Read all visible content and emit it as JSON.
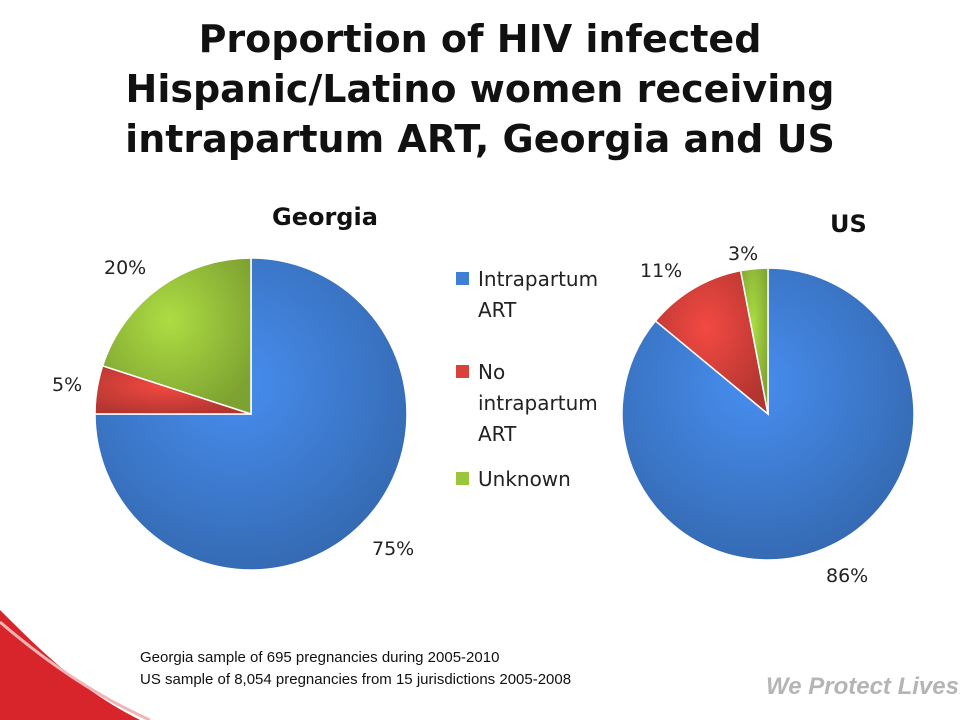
{
  "title_lines": [
    "Proportion of HIV infected",
    "Hispanic/Latino women receiving",
    "intrapartum ART, Georgia and US"
  ],
  "colors": {
    "Intrapartum ART": "#3f7fd6",
    "No intrapartum ART": "#d9413b",
    "Unknown": "#9ac53c",
    "footer_red": "#d7252b"
  },
  "legend": [
    "Intrapartum ART",
    "No intrapartum ART",
    "Unknown"
  ],
  "chart_data": [
    {
      "type": "pie",
      "title": "Georgia",
      "categories": [
        "Intrapartum ART",
        "No intrapartum ART",
        "Unknown"
      ],
      "values": [
        75,
        5,
        20
      ],
      "labels": [
        "75%",
        "5%",
        "20%"
      ],
      "legend_position": "right"
    },
    {
      "type": "pie",
      "title": "US",
      "categories": [
        "Intrapartum ART",
        "No intrapartum ART",
        "Unknown"
      ],
      "values": [
        86,
        11,
        3
      ],
      "labels": [
        "86%",
        "11%",
        "3%"
      ]
    }
  ],
  "footnotes": [
    "Georgia sample of 695 pregnancies during 2005-2010",
    "US sample of 8,054 pregnancies from 15 jurisdictions 2005-2008"
  ],
  "tagline": "We Protect Lives."
}
